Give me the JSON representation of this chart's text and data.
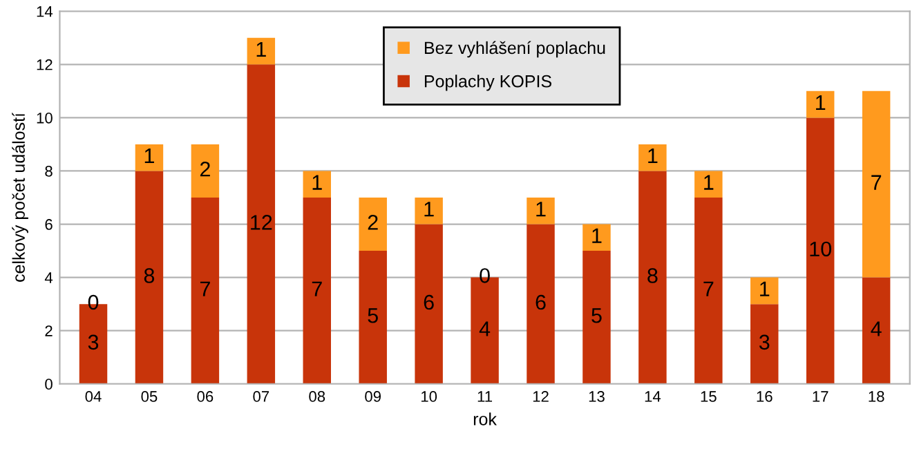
{
  "chart_data": {
    "type": "bar",
    "stacked": true,
    "xlabel": "rok",
    "ylabel": "celkový počet událostí",
    "categories": [
      "04",
      "05",
      "06",
      "07",
      "08",
      "09",
      "10",
      "11",
      "12",
      "13",
      "14",
      "15",
      "16",
      "17",
      "18"
    ],
    "series": [
      {
        "name": "Poplachy KOPIS",
        "color": "#c8340a",
        "values": [
          3,
          8,
          7,
          12,
          7,
          5,
          6,
          4,
          6,
          5,
          8,
          7,
          3,
          10,
          4
        ]
      },
      {
        "name": "Bez vyhlášení poplachu",
        "color": "#ff9a1e",
        "values": [
          0,
          1,
          2,
          1,
          1,
          2,
          1,
          0,
          1,
          1,
          1,
          1,
          1,
          1,
          7
        ]
      }
    ],
    "ylim": [
      0,
      14
    ],
    "yticks": [
      0,
      2,
      4,
      6,
      8,
      10,
      12,
      14
    ],
    "grid": "y",
    "legend": "top",
    "data_labels": true
  }
}
